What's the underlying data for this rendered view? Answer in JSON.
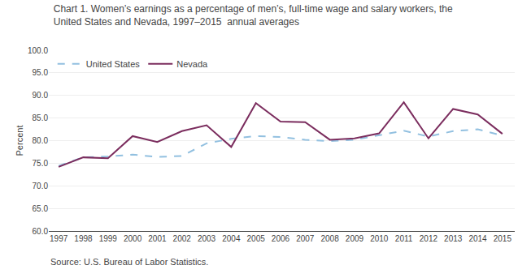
{
  "chart_data": {
    "type": "line",
    "title": "Chart 1. Women’s earnings as a percentage of men’s, full-time wage and salary workers, the\nUnited States and Nevada, 1997–2015  annual averages",
    "y_label": "Percent",
    "annotations": [
      "Source: U.S. Bureau of Labor Statistics."
    ],
    "x": [
      1997,
      1998,
      1999,
      2000,
      2001,
      2002,
      2003,
      2004,
      2005,
      2006,
      2007,
      2008,
      2009,
      2010,
      2011,
      2012,
      2013,
      2014,
      2015
    ],
    "series": [
      {
        "name": "United States",
        "color": "#92C0E0",
        "line_style": "dashed",
        "values": [
          74.4,
          76.3,
          76.5,
          76.9,
          76.4,
          76.6,
          79.4,
          80.4,
          81.0,
          80.8,
          80.2,
          79.9,
          80.2,
          81.2,
          82.2,
          80.9,
          82.1,
          82.5,
          81.1
        ]
      },
      {
        "name": "Nevada",
        "color": "#7B2D5E",
        "line_style": "solid",
        "values": [
          74.2,
          76.3,
          76.1,
          81.0,
          79.7,
          82.1,
          83.4,
          78.6,
          88.3,
          84.2,
          84.1,
          80.2,
          80.5,
          81.6,
          88.5,
          80.5,
          87.0,
          85.8,
          81.5
        ]
      }
    ],
    "xlim": [
      1996.6,
      2015.5
    ],
    "xticks": [
      1997,
      1998,
      1999,
      2000,
      2001,
      2002,
      2003,
      2004,
      2005,
      2006,
      2007,
      2008,
      2009,
      2010,
      2011,
      2012,
      2013,
      2014,
      2015
    ],
    "ylim": [
      60.0,
      100.0
    ],
    "yticks": [
      {
        "value": 60.0,
        "label": "60.0"
      },
      {
        "value": 65.0,
        "label": "65.0"
      },
      {
        "value": 70.0,
        "label": "70.0"
      },
      {
        "value": 75.0,
        "label": "75.0"
      },
      {
        "value": 80.0,
        "label": "80.0"
      },
      {
        "value": 85.0,
        "label": "85.0"
      },
      {
        "value": 90.0,
        "label": "90.0"
      },
      {
        "value": 95.0,
        "label": "95.0"
      },
      {
        "value": 100.0,
        "label": "100.0"
      }
    ],
    "grid": true,
    "legend": "upper left"
  }
}
